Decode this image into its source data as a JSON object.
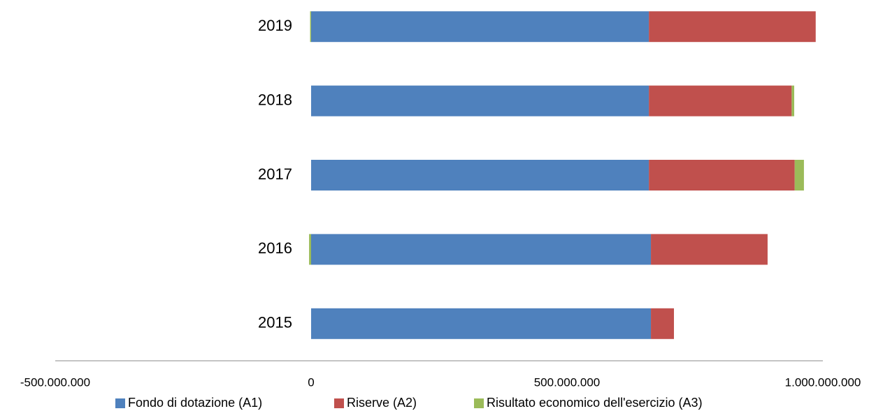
{
  "chart_data": {
    "type": "stacked-bar-horizontal",
    "categories": [
      "2015",
      "2016",
      "2017",
      "2018",
      "2019"
    ],
    "series": [
      {
        "name": "Fondo di dotazione (A1)",
        "color": "#4f81bd",
        "values": [
          664000000,
          664000000,
          660000000,
          660000000,
          660000000
        ]
      },
      {
        "name": "Riserve (A2)",
        "color": "#c0504d",
        "values": [
          45000000,
          228000000,
          285000000,
          279000000,
          326000000
        ]
      },
      {
        "name": "Risultato economico dell'esercizio (A3)",
        "color": "#9bbb59",
        "values": [
          0,
          -4000000,
          18000000,
          5000000,
          -2000000
        ]
      }
    ],
    "xlim": [
      -500000000,
      1000000000
    ],
    "xticks": [
      {
        "value": -500000000,
        "label": "-500.000.000"
      },
      0,
      {
        "value": 500000000,
        "label": "500.000.000"
      },
      {
        "value": 1000000000,
        "label": "1.000.000.000"
      }
    ],
    "legend": "bottom"
  }
}
